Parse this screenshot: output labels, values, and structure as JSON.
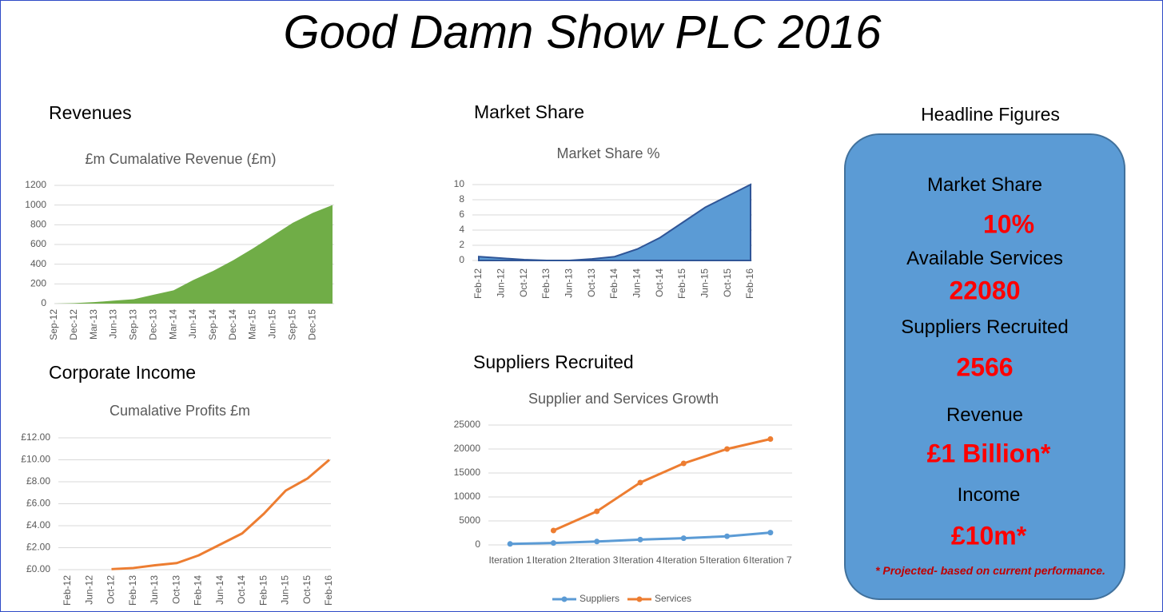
{
  "title": "Good Damn Show PLC 2016",
  "sections": [
    "Revenues",
    "Market Share",
    "Corporate Income",
    "Suppliers Recruited"
  ],
  "headline": {
    "title": "Headline Figures",
    "items": [
      {
        "label": "Market Share",
        "value": "10%"
      },
      {
        "label": "Available Services",
        "value": "22080"
      },
      {
        "label": "Suppliers Recruited",
        "value": "2566"
      },
      {
        "label": "Revenue",
        "value": "£1 Billion*"
      },
      {
        "label": "Income",
        "value": "£10m*"
      }
    ],
    "footnote": "* Projected- based on current performance."
  },
  "chart_data": [
    {
      "type": "area",
      "title": "£m Cumalative Revenue (£m)",
      "color": "#70ad47",
      "grid": true,
      "categories": [
        "Sep-12",
        "Dec-12",
        "Mar-13",
        "Jun-13",
        "Sep-13",
        "Dec-13",
        "Mar-14",
        "Jun-14",
        "Sep-14",
        "Dec-14",
        "Mar-15",
        "Jun-15",
        "Sep-15",
        "Dec-15",
        null
      ],
      "values": [
        0,
        5,
        15,
        30,
        45,
        90,
        135,
        240,
        332,
        440,
        560,
        690,
        820,
        920,
        1000
      ],
      "ylim": [
        0,
        1200
      ],
      "yticks": [
        0,
        200,
        400,
        600,
        800,
        1000,
        1200
      ]
    },
    {
      "type": "area",
      "title": "Market Share %",
      "color": "#5b9bd5",
      "grid": true,
      "categories": [
        "Feb-12",
        "Jun-12",
        "Oct-12",
        "Feb-13",
        "Jun-13",
        "Oct-13",
        "Feb-14",
        "Jun-14",
        "Oct-14",
        "Feb-15",
        "Jun-15",
        "Oct-15",
        "Feb-16"
      ],
      "values": [
        0.5,
        0.3,
        0.1,
        0,
        0,
        0.2,
        0.5,
        1.5,
        3,
        5,
        7,
        8.5,
        10
      ],
      "ylim": [
        0,
        10
      ],
      "yticks": [
        0,
        2,
        4,
        6,
        8,
        10
      ]
    },
    {
      "type": "line",
      "title": "Cumalative Profits £m",
      "color": "#ed7d31",
      "grid": true,
      "categories": [
        "Feb-12",
        "Jun-12",
        "Oct-12",
        "Feb-13",
        "Jun-13",
        "Oct-13",
        "Feb-14",
        "Jun-14",
        "Oct-14",
        "Feb-15",
        "Jun-15",
        "Oct-15",
        "Feb-16"
      ],
      "values": [
        null,
        null,
        0.05,
        0.15,
        0.4,
        0.6,
        1.3,
        2.3,
        3.3,
        5.1,
        7.2,
        8.3,
        10
      ],
      "ylim": [
        0,
        12
      ],
      "yticks": [
        {
          "value": 0,
          "label": "£0.00"
        },
        {
          "value": 2,
          "label": "£2.00"
        },
        {
          "value": 4,
          "label": "£4.00"
        },
        {
          "value": 6,
          "label": "£6.00"
        },
        {
          "value": 8,
          "label": "£8.00"
        },
        {
          "value": 10,
          "label": "£10.00"
        },
        {
          "value": 12,
          "label": "£12.00"
        }
      ]
    },
    {
      "type": "line",
      "title": "Supplier and Services Growth",
      "grid": true,
      "markers": true,
      "legend": "bottom",
      "categories": [
        "Iteration 1",
        "Iteration 2",
        "Iteration 3",
        "Iteration 4",
        "Iteration 5",
        "Iteration 6",
        "Iteration 7"
      ],
      "series": [
        {
          "name": "Suppliers",
          "color": "#5b9bd5",
          "values": [
            200,
            400,
            700,
            1100,
            1400,
            1800,
            2566
          ]
        },
        {
          "name": "Services",
          "color": "#ed7d31",
          "values": [
            null,
            3000,
            7000,
            13000,
            17000,
            20000,
            22080
          ]
        }
      ],
      "ylim": [
        0,
        25000
      ],
      "yticks": [
        0,
        5000,
        10000,
        15000,
        20000,
        25000
      ]
    }
  ]
}
